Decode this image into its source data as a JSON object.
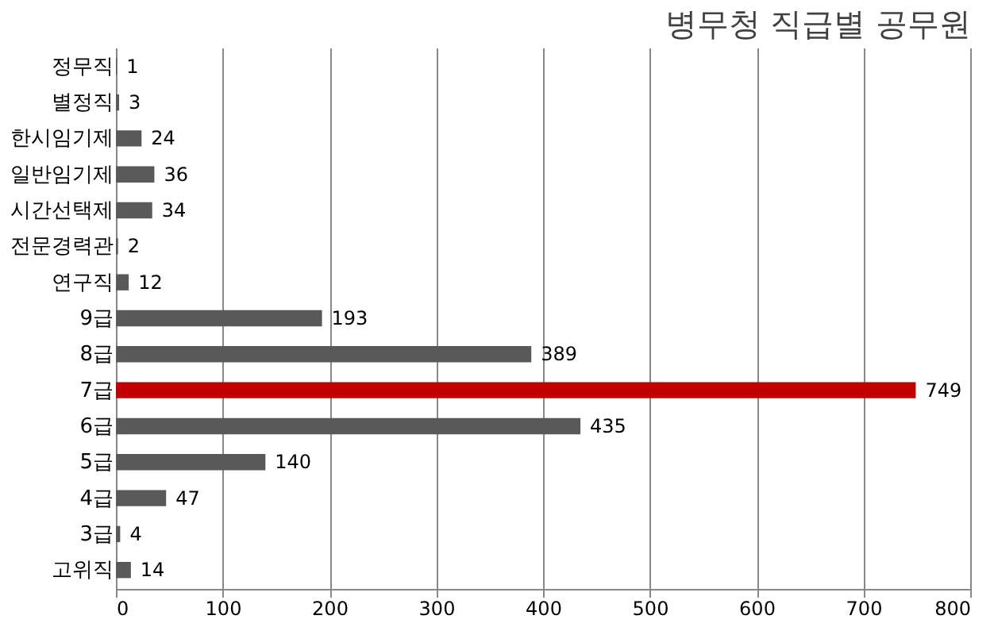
{
  "chart_data": {
    "type": "bar",
    "orientation": "horizontal",
    "title": "병무청 직급별 공무원",
    "categories": [
      "정무직",
      "별정직",
      "한시임기제",
      "일반임기제",
      "시간선택제",
      "전문경력관",
      "연구직",
      "9급",
      "8급",
      "7급",
      "6급",
      "5급",
      "4급",
      "3급",
      "고위직"
    ],
    "values": [
      1,
      3,
      24,
      36,
      34,
      2,
      12,
      193,
      389,
      749,
      435,
      140,
      47,
      4,
      14
    ],
    "colors": [
      "#595959",
      "#595959",
      "#595959",
      "#595959",
      "#595959",
      "#595959",
      "#595959",
      "#595959",
      "#595959",
      "#c00000",
      "#595959",
      "#595959",
      "#595959",
      "#595959",
      "#595959"
    ],
    "xlim": [
      0,
      800
    ],
    "xticks": [
      0,
      100,
      200,
      300,
      400,
      500,
      600,
      700,
      800
    ],
    "grid": "x",
    "data_labels": true
  }
}
